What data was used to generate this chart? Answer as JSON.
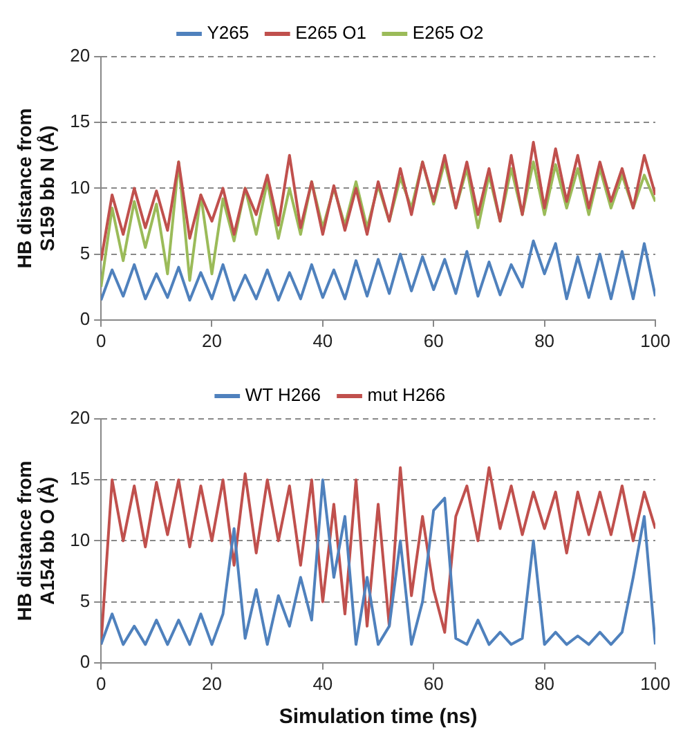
{
  "chart_data": [
    {
      "type": "line",
      "ylabel": "HB distance from S159 bb N (Å)",
      "legend": "top",
      "grid": "y",
      "marker": "none",
      "x": [
        0,
        2,
        4,
        6,
        8,
        10,
        12,
        14,
        16,
        18,
        20,
        22,
        24,
        26,
        28,
        30,
        32,
        34,
        36,
        38,
        40,
        42,
        44,
        46,
        48,
        50,
        52,
        54,
        56,
        58,
        60,
        62,
        64,
        66,
        68,
        70,
        72,
        74,
        76,
        78,
        80,
        82,
        84,
        86,
        88,
        90,
        92,
        94,
        96,
        98,
        100
      ],
      "xlim": [
        0,
        100
      ],
      "xticks": [
        0,
        20,
        40,
        60,
        80,
        100
      ],
      "ylim": [
        0,
        20
      ],
      "yticks": [
        0,
        5,
        10,
        15,
        20
      ],
      "series": [
        {
          "name": "Y265",
          "color": "#4f81bd",
          "values": [
            1.5,
            3.8,
            1.8,
            4.2,
            1.6,
            3.5,
            1.7,
            4.0,
            1.5,
            3.6,
            1.6,
            4.2,
            1.5,
            3.4,
            1.6,
            3.8,
            1.5,
            3.6,
            1.6,
            4.2,
            1.7,
            3.8,
            1.6,
            4.5,
            1.8,
            4.6,
            2.0,
            5.0,
            2.2,
            4.8,
            2.3,
            4.6,
            2.0,
            5.2,
            1.8,
            4.4,
            1.9,
            4.2,
            2.5,
            6.0,
            3.5,
            5.8,
            1.6,
            4.8,
            1.7,
            5.0,
            1.6,
            5.2,
            1.6,
            5.8,
            1.8
          ]
        },
        {
          "name": "E265 O1",
          "color": "#c0504d",
          "values": [
            4.5,
            9.5,
            6.5,
            10,
            7,
            9.8,
            6.8,
            12,
            6.2,
            9.5,
            7.5,
            10,
            6.5,
            10,
            8,
            11,
            7.2,
            12.5,
            7,
            10.5,
            6.5,
            10.2,
            6.8,
            10,
            6.5,
            10.5,
            7.5,
            11.5,
            8,
            12,
            9,
            12.5,
            8.5,
            12,
            8,
            11.5,
            7.5,
            12.5,
            8,
            13.5,
            8.5,
            13,
            9,
            12.5,
            8.5,
            12,
            9,
            11.5,
            8.5,
            12.5,
            9.5
          ]
        },
        {
          "name": "E265 O2",
          "color": "#9bbb59",
          "values": [
            2.5,
            8.5,
            4.5,
            9,
            5.5,
            8.8,
            3.5,
            12,
            3,
            9.5,
            3.5,
            9.2,
            6,
            10,
            6.5,
            10.5,
            6.2,
            10,
            6.5,
            10.5,
            7,
            10,
            7.2,
            10.5,
            7,
            10.2,
            7.5,
            10.8,
            8.5,
            12,
            8.8,
            12,
            8.5,
            11.5,
            7,
            11,
            7.5,
            11.5,
            8,
            12,
            8,
            11.8,
            8.5,
            11.5,
            8,
            11.5,
            8.5,
            11,
            8.5,
            11,
            9
          ]
        }
      ]
    },
    {
      "type": "line",
      "ylabel": "HB distance from A154 bb O (Å)",
      "xlabel": "Simulation time (ns)",
      "legend": "top",
      "grid": "y",
      "marker": "none",
      "x": [
        0,
        2,
        4,
        6,
        8,
        10,
        12,
        14,
        16,
        18,
        20,
        22,
        24,
        26,
        28,
        30,
        32,
        34,
        36,
        38,
        40,
        42,
        44,
        46,
        48,
        50,
        52,
        54,
        56,
        58,
        60,
        62,
        64,
        66,
        68,
        70,
        72,
        74,
        76,
        78,
        80,
        82,
        84,
        86,
        88,
        90,
        92,
        94,
        96,
        98,
        100
      ],
      "xlim": [
        0,
        100
      ],
      "xticks": [
        0,
        20,
        40,
        60,
        80,
        100
      ],
      "ylim": [
        0,
        20
      ],
      "yticks": [
        0,
        5,
        10,
        15,
        20
      ],
      "series": [
        {
          "name": "WT H266",
          "color": "#4f81bd",
          "values": [
            1.5,
            4,
            1.5,
            3,
            1.5,
            3.5,
            1.5,
            3.5,
            1.5,
            4,
            1.5,
            4,
            11,
            2,
            6,
            1.5,
            5.5,
            3,
            7,
            3.5,
            15,
            7,
            12,
            1.5,
            7,
            1.5,
            3,
            10,
            1.5,
            5,
            12.5,
            13.5,
            2,
            1.5,
            3.5,
            1.5,
            2.5,
            1.5,
            2,
            10,
            1.5,
            2.5,
            1.5,
            2.2,
            1.5,
            2.5,
            1.5,
            2.5,
            7,
            12,
            1.5
          ]
        },
        {
          "name": "mut H266",
          "color": "#c0504d",
          "values": [
            1.5,
            15,
            10,
            14.5,
            9.5,
            14.8,
            10.5,
            15,
            9.5,
            14.5,
            10,
            15,
            8,
            15.5,
            9,
            15,
            10,
            14.5,
            8,
            15,
            5,
            13,
            4,
            15,
            3,
            13,
            3,
            16,
            5.5,
            12,
            6,
            2.5,
            12,
            14.5,
            10,
            16,
            11,
            14.5,
            10.5,
            14,
            11,
            14,
            9,
            14,
            10.5,
            14,
            10.5,
            14.5,
            10,
            14,
            11
          ]
        }
      ]
    }
  ]
}
